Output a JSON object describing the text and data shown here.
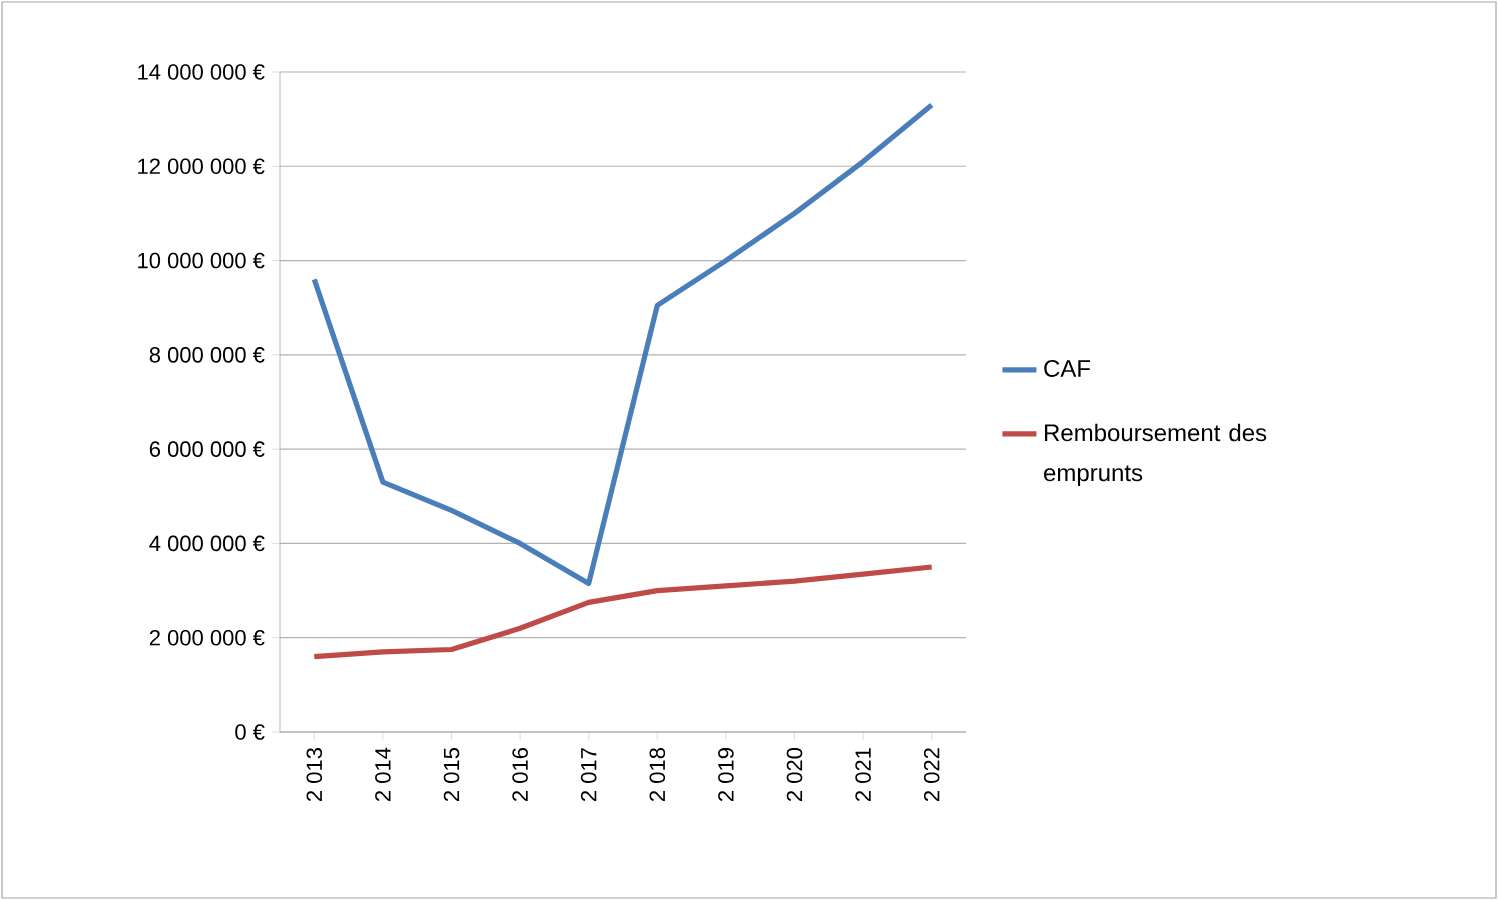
{
  "chart_data": {
    "type": "line",
    "categories": [
      "2 013",
      "2 014",
      "2 015",
      "2 016",
      "2 017",
      "2 018",
      "2 019",
      "2 020",
      "2 021",
      "2 022"
    ],
    "series": [
      {
        "name": "CAF",
        "color": "#4a7ebb",
        "values": [
          9600000,
          5300000,
          4700000,
          4000000,
          3150000,
          9050000,
          10000000,
          11000000,
          12100000,
          13300000
        ]
      },
      {
        "name": "Remboursement des emprunts",
        "color": "#be4b48",
        "values": [
          1600000,
          1700000,
          1750000,
          2200000,
          2750000,
          3000000,
          3100000,
          3200000,
          3350000,
          3500000
        ]
      }
    ],
    "ylim": [
      0,
      14000000
    ],
    "yticks": [
      {
        "value": 0,
        "label": "0 €"
      },
      {
        "value": 2000000,
        "label": "2 000 000 €"
      },
      {
        "value": 4000000,
        "label": "4 000 000 €"
      },
      {
        "value": 6000000,
        "label": "6 000 000 €"
      },
      {
        "value": 8000000,
        "label": "8 000 000 €"
      },
      {
        "value": 10000000,
        "label": "10 000 000 €"
      },
      {
        "value": 12000000,
        "label": "12 000 000 €"
      },
      {
        "value": 14000000,
        "label": "14 000 000 €"
      }
    ],
    "grid": "y",
    "legend": "right",
    "marker": "none",
    "line_style": "solid"
  }
}
